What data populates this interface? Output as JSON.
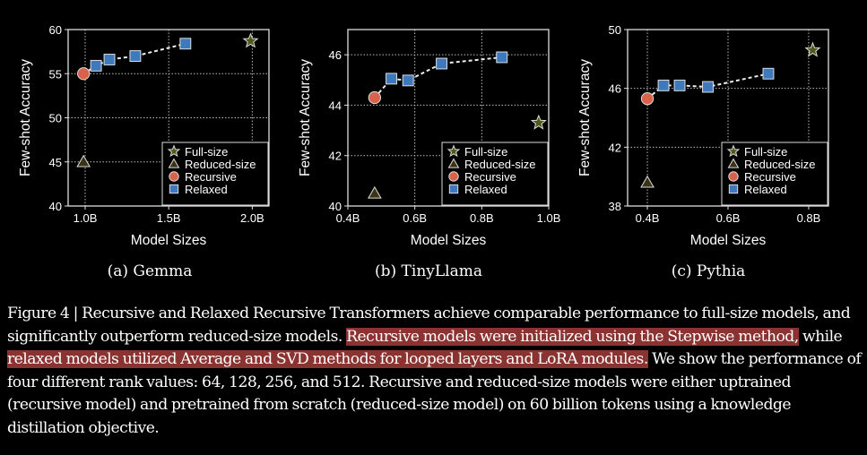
{
  "chart_data": [
    {
      "type": "scatter",
      "title": "(a) Gemma",
      "xlabel": "Model Sizes",
      "ylabel": "Few-shot Accuracy",
      "xlim": [
        0.898,
        2.1
      ],
      "ylim": [
        40,
        60
      ],
      "xticks": [
        1.0,
        1.5,
        2.0
      ],
      "xtick_labels": [
        "1.0B",
        "1.5B",
        "2.0B"
      ],
      "yticks": [
        40,
        45,
        50,
        55,
        60
      ],
      "ytick_labels": [
        "40",
        "45",
        "50",
        "55",
        "60"
      ],
      "grid": true,
      "legend_position": "lower-right",
      "series": [
        {
          "name": "Full-size",
          "marker": "star",
          "color": "#4f5a1a",
          "x": [
            1.99
          ],
          "y": [
            58.7
          ]
        },
        {
          "name": "Reduced-size",
          "marker": "triangle",
          "color": "#3b3315",
          "x": [
            0.99
          ],
          "y": [
            45.0
          ]
        },
        {
          "name": "Recursive",
          "marker": "circle",
          "color": "#d9624a",
          "x": [
            0.99
          ],
          "y": [
            55.0
          ]
        },
        {
          "name": "Relaxed",
          "marker": "square",
          "color": "#3f79bd",
          "x": [
            1.065,
            1.145,
            1.3,
            1.6
          ],
          "y": [
            55.9,
            56.6,
            57.0,
            58.4
          ]
        }
      ]
    },
    {
      "type": "scatter",
      "title": "(b) TinyLlama",
      "xlabel": "Model Sizes",
      "ylabel": "Few-shot Accuracy",
      "xlim": [
        0.4,
        1.0
      ],
      "ylim": [
        40,
        47
      ],
      "xticks": [
        0.4,
        0.6,
        0.8,
        1.0
      ],
      "xtick_labels": [
        "0.4B",
        "0.6B",
        "0.8B",
        "1.0B"
      ],
      "yticks": [
        40,
        42,
        44,
        46
      ],
      "ytick_labels": [
        "40",
        "42",
        "44",
        "46"
      ],
      "grid": true,
      "legend_position": "lower-right",
      "series": [
        {
          "name": "Full-size",
          "marker": "star",
          "color": "#4f5a1a",
          "x": [
            0.97
          ],
          "y": [
            43.3
          ]
        },
        {
          "name": "Reduced-size",
          "marker": "triangle",
          "color": "#3b3315",
          "x": [
            0.48
          ],
          "y": [
            40.5
          ]
        },
        {
          "name": "Recursive",
          "marker": "circle",
          "color": "#d9624a",
          "x": [
            0.48
          ],
          "y": [
            44.3
          ]
        },
        {
          "name": "Relaxed",
          "marker": "square",
          "color": "#3f79bd",
          "x": [
            0.53,
            0.58,
            0.68,
            0.86
          ],
          "y": [
            45.05,
            44.98,
            45.65,
            45.9
          ]
        }
      ]
    },
    {
      "type": "scatter",
      "title": "(c) Pythia",
      "xlabel": "Model Sizes",
      "ylabel": "Few-shot Accuracy",
      "xlim": [
        0.351,
        0.849
      ],
      "ylim": [
        38,
        50
      ],
      "xticks": [
        0.4,
        0.6,
        0.8
      ],
      "xtick_labels": [
        "0.4B",
        "0.6B",
        "0.8B"
      ],
      "yticks": [
        38,
        42,
        46,
        50
      ],
      "ytick_labels": [
        "38",
        "42",
        "46",
        "50"
      ],
      "grid": true,
      "legend_position": "lower-right",
      "series": [
        {
          "name": "Full-size",
          "marker": "star",
          "color": "#4f5a1a",
          "x": [
            0.81
          ],
          "y": [
            48.6
          ]
        },
        {
          "name": "Reduced-size",
          "marker": "triangle",
          "color": "#3b3315",
          "x": [
            0.4
          ],
          "y": [
            39.6
          ]
        },
        {
          "name": "Recursive",
          "marker": "circle",
          "color": "#d9624a",
          "x": [
            0.4
          ],
          "y": [
            45.3
          ]
        },
        {
          "name": "Relaxed",
          "marker": "square",
          "color": "#3f79bd",
          "x": [
            0.44,
            0.48,
            0.55,
            0.7
          ],
          "y": [
            46.2,
            46.2,
            46.1,
            47.0
          ]
        }
      ]
    }
  ],
  "subcaptions": [
    "(a) Gemma",
    "(b) TinyLlama",
    "(c) Pythia"
  ],
  "caption": {
    "part1": "Figure 4 | Recursive and Relaxed Recursive Transformers achieve comparable performance to full-size models, and significantly outperform reduced-size models. ",
    "highlight1": "Recursive models were initialized using the Stepwise method,",
    "part2": " while ",
    "highlight2": "relaxed models utilized Average and SVD methods for looped layers and LoRA modules.",
    "part3": " We show the performance of four different rank values: 64, 128, 256, and 512. Recursive and reduced-size models were either uptrained (recursive model) and pretrained from scratch (reduced-size model) on 60 billion tokens using a knowledge distillation objective."
  },
  "colors": {
    "background": "#000000",
    "highlight": "#8b3331",
    "grid": "#bbbbbb",
    "axis": "#dddddd"
  }
}
